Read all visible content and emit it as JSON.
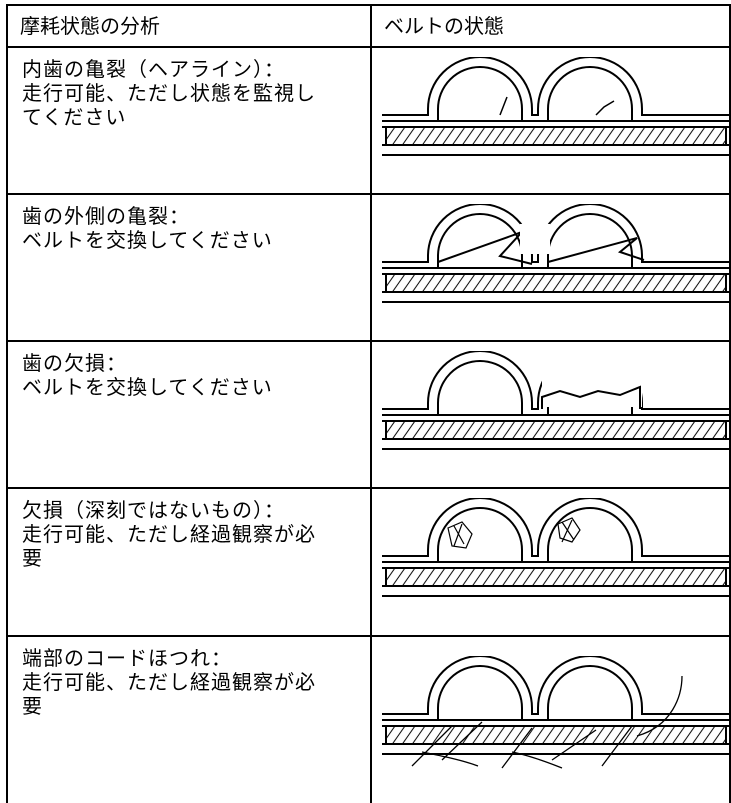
{
  "header": {
    "cells": [
      "摩耗状態の分析",
      "ベルトの状態"
    ]
  },
  "table": {
    "rows": [
      {
        "lines": [
          "内歯の亀裂（ヘアライン）：",
          "走行可能、ただし状態を監視し",
          "てください"
        ]
      },
      {
        "lines": [
          "歯の外側の亀裂：",
          "ベルトを交換してください"
        ]
      },
      {
        "lines": [
          "歯の欠損：",
          "ベルトを交換してください"
        ]
      },
      {
        "lines": [
          "欠損（深刻ではないもの）：",
          "走行可能、ただし経過観察が必",
          "要"
        ]
      },
      {
        "lines": [
          "端部のコードほつれ：",
          "走行可能、ただし経過観察が必",
          "要"
        ]
      }
    ]
  }
}
